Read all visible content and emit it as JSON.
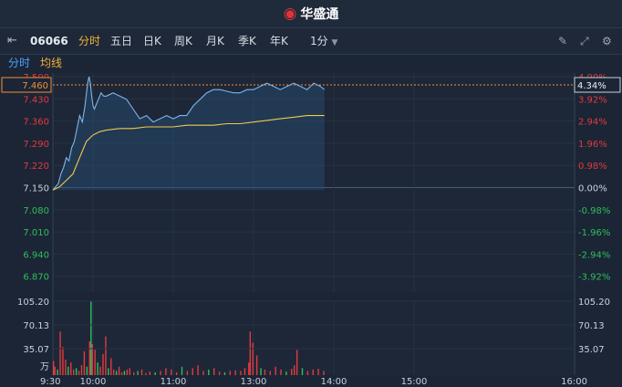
{
  "brand": {
    "logo_icon": "weibo-eye-logo",
    "name": "华盛通"
  },
  "toolbar": {
    "stock_code": "06066",
    "periods": [
      "分时",
      "五日",
      "日K",
      "周K",
      "月K",
      "季K",
      "年K"
    ],
    "active_period": "分时",
    "minute_select": "1分",
    "icons": [
      "collapse-left-icon",
      "pen-icon",
      "expand-icon",
      "settings-icon"
    ]
  },
  "subtabs": {
    "items": [
      "分时",
      "均线"
    ],
    "colors": [
      "#4aa3ff",
      "#f2b23a"
    ]
  },
  "colors": {
    "up": "#e5393f",
    "down": "#2fbf5b",
    "price_line": "#7fb4ea",
    "avg_line": "#f2c94c",
    "neutral": "#c9d1dc",
    "crosshair": "#f2903a"
  },
  "crosshair": {
    "price": "7.460",
    "percent": "4.34%"
  },
  "chart_data": {
    "type": "line",
    "title": "",
    "prev_close": 7.15,
    "ylim": [
      6.835,
      7.5
    ],
    "price_ticks": [
      "7.500",
      "7.430",
      "7.360",
      "7.290",
      "7.220",
      "7.150",
      "7.080",
      "7.010",
      "6.940",
      "6.870"
    ],
    "pct_ticks": [
      "4.90%",
      "3.92%",
      "2.94%",
      "1.96%",
      "0.98%",
      "0.00%",
      "-0.98%",
      "-1.96%",
      "-2.94%",
      "-3.92%"
    ],
    "time_ticks": [
      "9:30",
      "10:00",
      "11:00",
      "13:00",
      "14:00",
      "15:00",
      "16:00"
    ],
    "time_tick_minutes": [
      0,
      30,
      90,
      150,
      210,
      270,
      330
    ],
    "x_max_minutes": 390,
    "volume_ticks": [
      "105.20",
      "70.13",
      "35.07",
      "万"
    ],
    "volume_max": 105.2,
    "series": [
      {
        "name": "分时",
        "x": [
          0,
          2,
          4,
          6,
          8,
          10,
          12,
          14,
          16,
          18,
          20,
          22,
          24,
          26,
          27,
          28,
          29,
          30,
          31,
          32,
          34,
          36,
          38,
          40,
          45,
          50,
          55,
          60,
          65,
          70,
          75,
          80,
          85,
          90,
          95,
          100,
          105,
          110,
          115,
          120,
          125,
          130,
          135,
          140,
          145,
          150,
          155,
          160,
          165,
          170,
          175,
          180,
          185,
          190,
          195,
          200,
          203
        ],
        "values": [
          7.15,
          7.16,
          7.17,
          7.2,
          7.22,
          7.25,
          7.24,
          7.28,
          7.3,
          7.34,
          7.38,
          7.36,
          7.41,
          7.48,
          7.5,
          7.48,
          7.44,
          7.41,
          7.4,
          7.41,
          7.43,
          7.45,
          7.44,
          7.44,
          7.45,
          7.44,
          7.43,
          7.4,
          7.37,
          7.38,
          7.36,
          7.37,
          7.38,
          7.37,
          7.38,
          7.38,
          7.41,
          7.43,
          7.45,
          7.46,
          7.46,
          7.455,
          7.45,
          7.45,
          7.46,
          7.46,
          7.47,
          7.48,
          7.47,
          7.46,
          7.47,
          7.48,
          7.47,
          7.46,
          7.48,
          7.47,
          7.46
        ]
      },
      {
        "name": "均线",
        "x": [
          0,
          5,
          10,
          15,
          20,
          25,
          30,
          35,
          40,
          50,
          60,
          70,
          80,
          90,
          100,
          110,
          120,
          130,
          140,
          150,
          160,
          170,
          180,
          190,
          203
        ],
        "values": [
          7.15,
          7.16,
          7.18,
          7.2,
          7.25,
          7.3,
          7.32,
          7.33,
          7.335,
          7.34,
          7.34,
          7.345,
          7.345,
          7.345,
          7.35,
          7.35,
          7.35,
          7.355,
          7.355,
          7.36,
          7.365,
          7.37,
          7.375,
          7.38,
          7.38
        ]
      }
    ],
    "volume": {
      "x": [
        0,
        1,
        3,
        5,
        7,
        9,
        11,
        13,
        15,
        17,
        19,
        21,
        23,
        25,
        27,
        28,
        29,
        31,
        33,
        35,
        37,
        39,
        41,
        43,
        45,
        47,
        49,
        51,
        53,
        55,
        57,
        60,
        63,
        66,
        69,
        72,
        76,
        80,
        84,
        88,
        92,
        96,
        100,
        104,
        108,
        112,
        116,
        120,
        124,
        128,
        132,
        136,
        140,
        143,
        146,
        147,
        149,
        152,
        155,
        158,
        162,
        166,
        170,
        174,
        178,
        180,
        182,
        186,
        190,
        194,
        198,
        202
      ],
      "values": [
        20,
        12,
        8,
        62,
        40,
        22,
        12,
        18,
        8,
        10,
        6,
        14,
        34,
        12,
        48,
        105.2,
        44,
        36,
        18,
        12,
        30,
        55,
        10,
        24,
        8,
        6,
        12,
        4,
        6,
        8,
        10,
        4,
        6,
        8,
        3,
        5,
        4,
        6,
        10,
        8,
        4,
        12,
        6,
        10,
        14,
        6,
        8,
        10,
        5,
        4,
        6,
        7,
        6,
        10,
        18,
        62,
        46,
        28,
        10,
        8,
        6,
        12,
        8,
        5,
        9,
        14,
        36,
        10,
        6,
        8,
        9,
        6
      ],
      "colors": [
        "r",
        "r",
        "g",
        "r",
        "r",
        "r",
        "g",
        "r",
        "r",
        "g",
        "r",
        "r",
        "r",
        "g",
        "r",
        "g",
        "r",
        "r",
        "g",
        "r",
        "r",
        "r",
        "g",
        "r",
        "r",
        "g",
        "r",
        "r",
        "g",
        "r",
        "r",
        "r",
        "g",
        "r",
        "r",
        "r",
        "g",
        "r",
        "r",
        "r",
        "r",
        "g",
        "r",
        "r",
        "r",
        "r",
        "g",
        "r",
        "r",
        "g",
        "r",
        "r",
        "r",
        "r",
        "r",
        "r",
        "r",
        "r",
        "g",
        "r",
        "r",
        "r",
        "r",
        "g",
        "r",
        "r",
        "r",
        "g",
        "r",
        "r",
        "r",
        "r"
      ]
    }
  }
}
